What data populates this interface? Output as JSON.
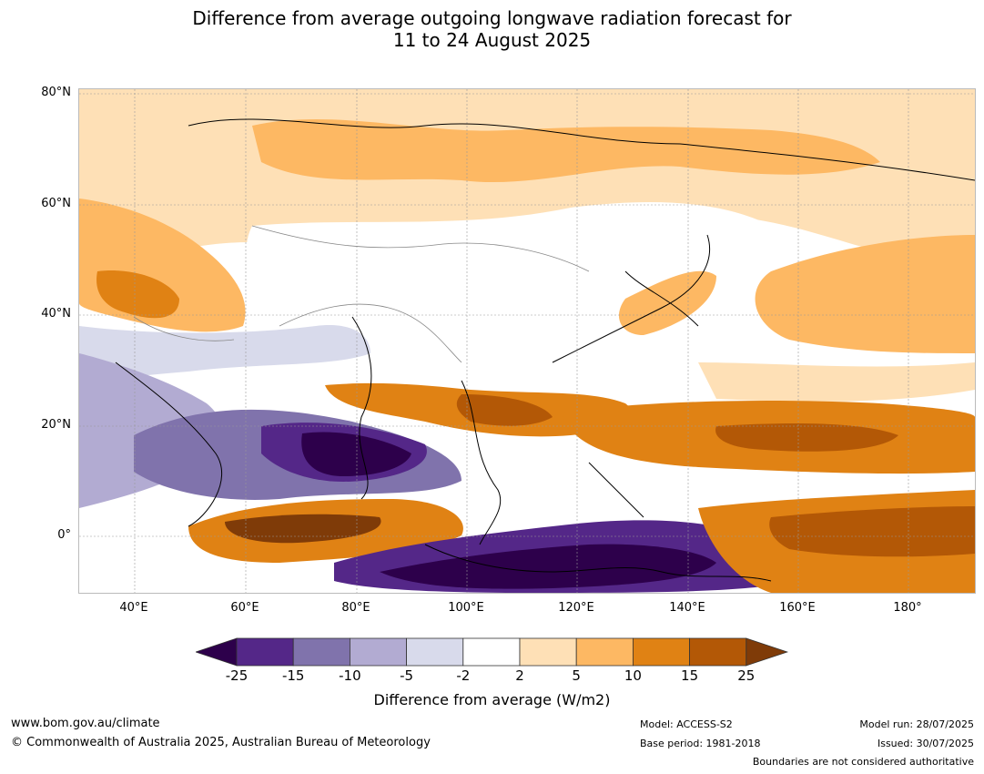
{
  "title_line1": "Difference from average outgoing longwave radiation forecast for",
  "title_line2": "11 to 24 August 2025",
  "lat_labels": [
    "80°N",
    "60°N",
    "40°N",
    "20°N",
    "0°"
  ],
  "lon_labels": [
    "40°E",
    "60°E",
    "80°E",
    "100°E",
    "120°E",
    "140°E",
    "160°E",
    "180°"
  ],
  "colorbar": {
    "title": "Difference from average (W/m2)",
    "ticks": [
      "-25",
      "-15",
      "-10",
      "-5",
      "-2",
      "2",
      "5",
      "10",
      "15",
      "25"
    ],
    "colors": [
      "#2d004b",
      "#542788",
      "#8073ac",
      "#b2abd2",
      "#d8daeb",
      "#ffffff",
      "#fee0b6",
      "#fdb863",
      "#e08214",
      "#b35806",
      "#7f3b08"
    ]
  },
  "footer": {
    "website": "www.bom.gov.au/climate",
    "copyright": "© Commonwealth of Australia 2025, Australian Bureau of Meteorology",
    "model": "Model: ACCESS-S2",
    "base_period": "Base period: 1981-2018",
    "model_run": "Model run: 28/07/2025",
    "issued": "Issued: 30/07/2025",
    "disclaimer": "Boundaries are not considered authoritative"
  }
}
